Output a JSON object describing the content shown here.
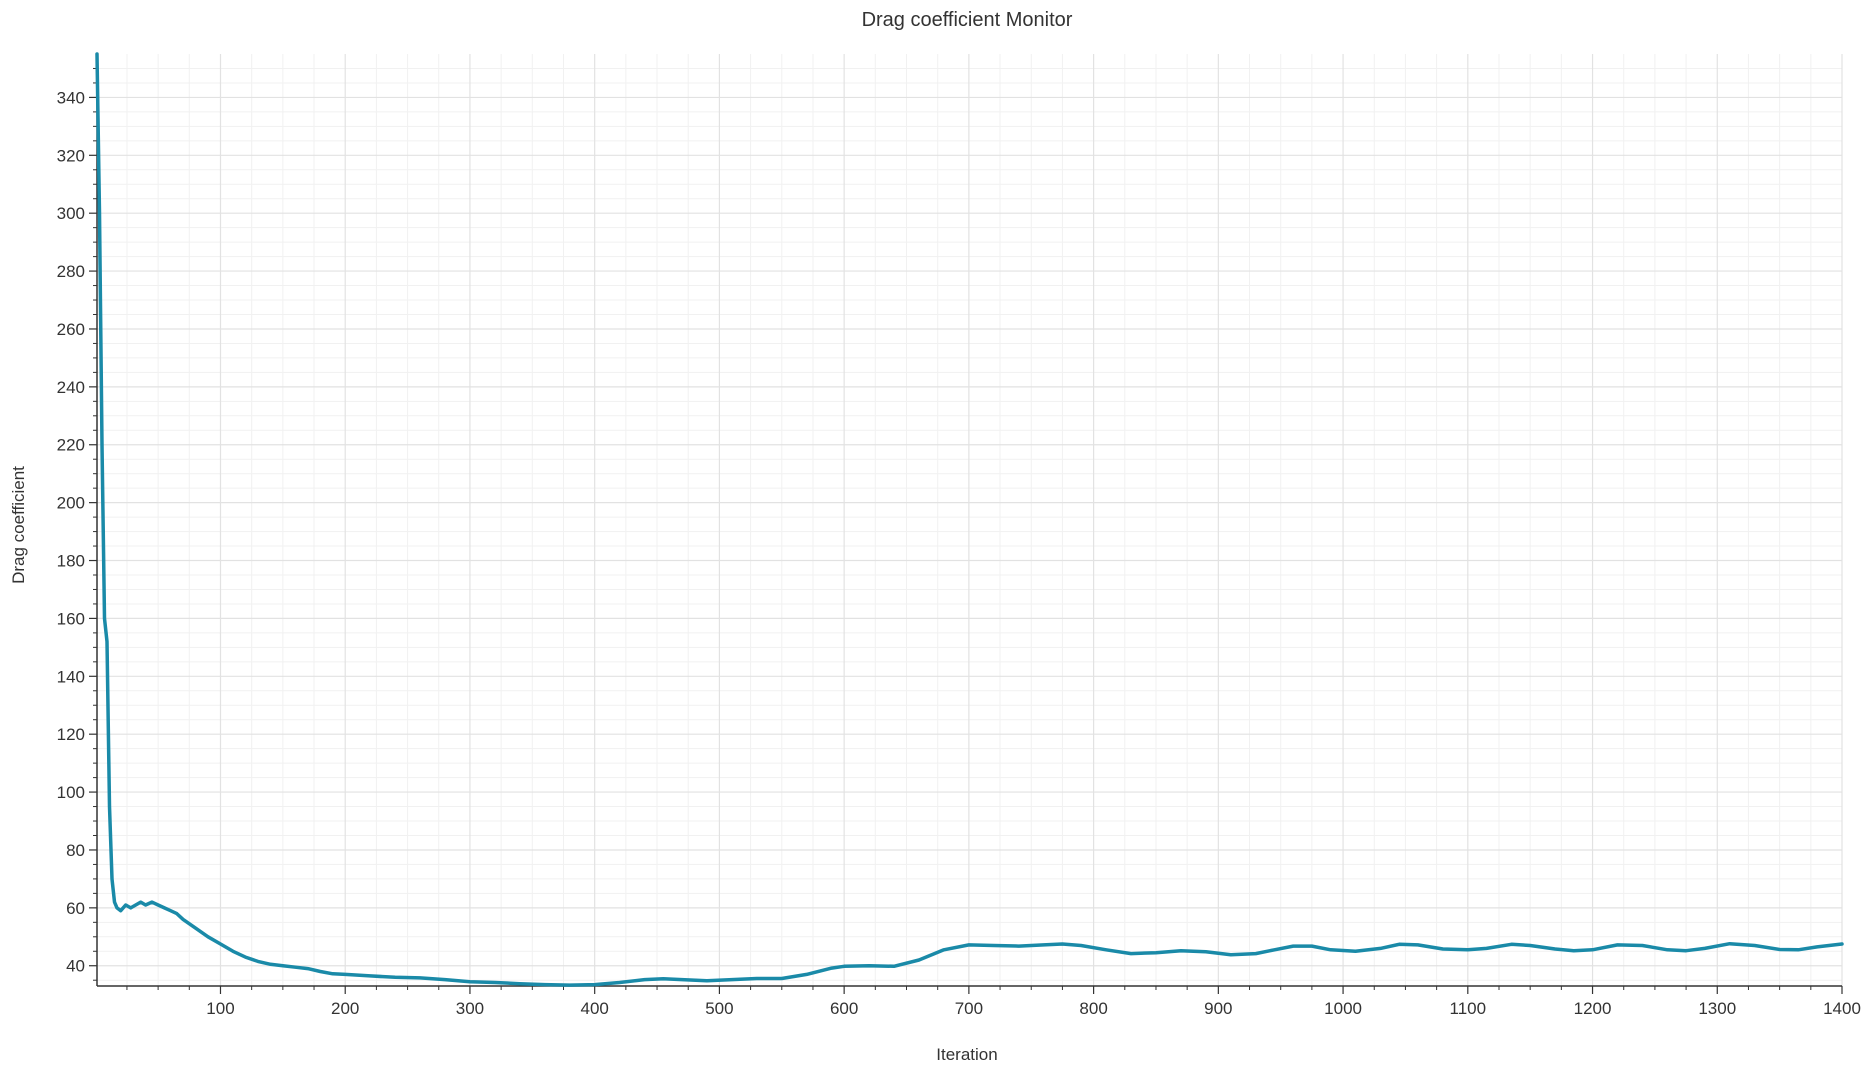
{
  "chart_data": {
    "type": "line",
    "title": "Drag coefficient Monitor",
    "xlabel": "Iteration",
    "ylabel": "Drag coefficient",
    "xlim": [
      1,
      1400
    ],
    "ylim": [
      33,
      355
    ],
    "x_ticks": [
      100,
      200,
      300,
      400,
      500,
      600,
      700,
      800,
      900,
      1000,
      1100,
      1200,
      1300,
      1400
    ],
    "y_ticks": [
      40,
      60,
      80,
      100,
      120,
      140,
      160,
      180,
      200,
      220,
      240,
      260,
      280,
      300,
      320,
      340
    ],
    "grid": true,
    "legend": "none",
    "series": [
      {
        "color": "#1a8aa8",
        "points": [
          [
            1,
            355
          ],
          [
            3,
            300
          ],
          [
            5,
            220
          ],
          [
            7,
            160
          ],
          [
            9,
            152
          ],
          [
            11,
            95
          ],
          [
            13,
            70
          ],
          [
            15,
            62
          ],
          [
            17,
            60
          ],
          [
            20,
            59
          ],
          [
            24,
            61
          ],
          [
            28,
            60
          ],
          [
            32,
            61
          ],
          [
            36,
            62
          ],
          [
            40,
            61
          ],
          [
            45,
            62
          ],
          [
            50,
            61
          ],
          [
            55,
            60
          ],
          [
            60,
            59
          ],
          [
            65,
            58
          ],
          [
            70,
            56
          ],
          [
            80,
            53
          ],
          [
            90,
            50
          ],
          [
            100,
            47.5
          ],
          [
            110,
            45
          ],
          [
            120,
            43
          ],
          [
            130,
            41.5
          ],
          [
            140,
            40.5
          ],
          [
            150,
            40
          ],
          [
            160,
            39.5
          ],
          [
            170,
            39
          ],
          [
            180,
            38
          ],
          [
            190,
            37.2
          ],
          [
            200,
            37
          ],
          [
            220,
            36.5
          ],
          [
            240,
            36
          ],
          [
            260,
            35.8
          ],
          [
            280,
            35.2
          ],
          [
            300,
            34.5
          ],
          [
            320,
            34.2
          ],
          [
            340,
            33.8
          ],
          [
            360,
            33.5
          ],
          [
            380,
            33.3
          ],
          [
            400,
            33.5
          ],
          [
            420,
            34.2
          ],
          [
            440,
            35.2
          ],
          [
            455,
            35.5
          ],
          [
            470,
            35.2
          ],
          [
            490,
            34.8
          ],
          [
            510,
            35.2
          ],
          [
            530,
            35.6
          ],
          [
            550,
            35.6
          ],
          [
            570,
            37
          ],
          [
            590,
            39.2
          ],
          [
            600,
            39.8
          ],
          [
            620,
            40
          ],
          [
            640,
            39.8
          ],
          [
            660,
            42
          ],
          [
            680,
            45.5
          ],
          [
            700,
            47.2
          ],
          [
            720,
            47
          ],
          [
            740,
            46.8
          ],
          [
            760,
            47.2
          ],
          [
            775,
            47.5
          ],
          [
            790,
            47
          ],
          [
            810,
            45.5
          ],
          [
            830,
            44.2
          ],
          [
            850,
            44.5
          ],
          [
            870,
            45.2
          ],
          [
            890,
            44.8
          ],
          [
            910,
            43.8
          ],
          [
            930,
            44.2
          ],
          [
            945,
            45.5
          ],
          [
            960,
            46.8
          ],
          [
            975,
            46.8
          ],
          [
            990,
            45.5
          ],
          [
            1010,
            45
          ],
          [
            1030,
            46
          ],
          [
            1045,
            47.4
          ],
          [
            1060,
            47.2
          ],
          [
            1080,
            45.8
          ],
          [
            1100,
            45.5
          ],
          [
            1115,
            46
          ],
          [
            1135,
            47.4
          ],
          [
            1150,
            47
          ],
          [
            1170,
            45.8
          ],
          [
            1185,
            45.2
          ],
          [
            1200,
            45.5
          ],
          [
            1220,
            47.2
          ],
          [
            1240,
            47
          ],
          [
            1260,
            45.5
          ],
          [
            1275,
            45.2
          ],
          [
            1290,
            46
          ],
          [
            1310,
            47.6
          ],
          [
            1330,
            47
          ],
          [
            1350,
            45.6
          ],
          [
            1365,
            45.5
          ],
          [
            1380,
            46.5
          ],
          [
            1400,
            47.5
          ]
        ]
      }
    ]
  },
  "colors": {
    "line": "#1a8aa8",
    "grid_major": "#e2e2e2",
    "grid_minor": "#f1f1f1",
    "axis": "#333333"
  }
}
